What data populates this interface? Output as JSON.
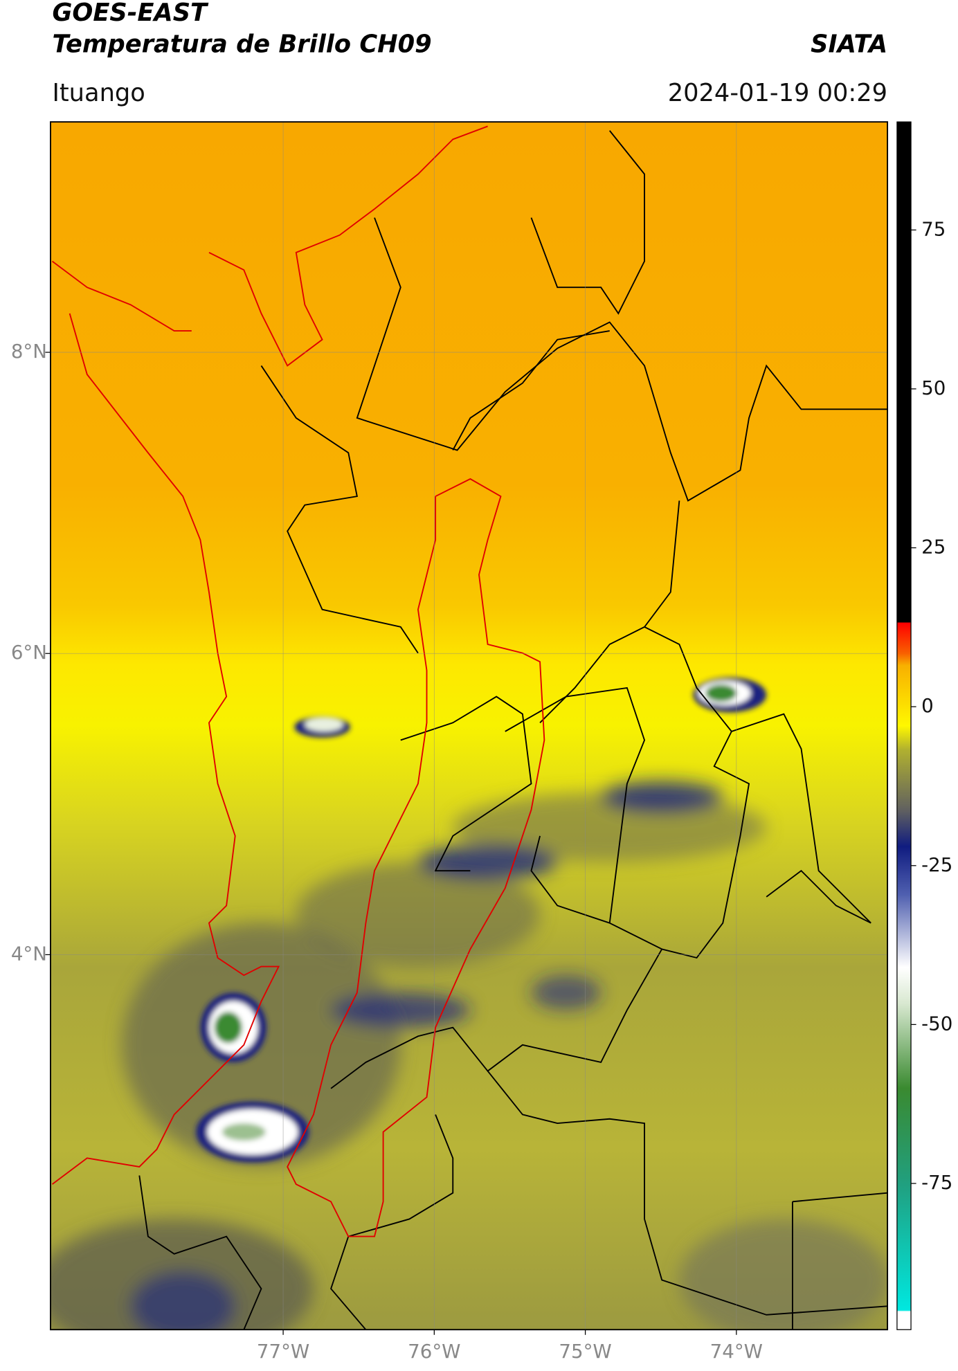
{
  "header": {
    "title": "GOES-EAST",
    "subtitle": "Temperatura de Brillo CH09",
    "source": "SIATA",
    "region": "Ituango",
    "datetime": "2024-01-19 00:29"
  },
  "map": {
    "xlim": [
      -78.54,
      -73.0
    ],
    "ylim": [
      1.51,
      9.53
    ],
    "xticks": [
      {
        "value": -77,
        "label": "77°W"
      },
      {
        "value": -76,
        "label": "76°W"
      },
      {
        "value": -75,
        "label": "75°W"
      },
      {
        "value": -74,
        "label": "74°W"
      }
    ],
    "yticks": [
      {
        "value": 8,
        "label": "8°N"
      },
      {
        "value": 6,
        "label": "6°N"
      },
      {
        "value": 4,
        "label": "4°N"
      }
    ],
    "grid": true
  },
  "colorbar": {
    "lim": [
      -98,
      92
    ],
    "ticks": [
      -75,
      -50,
      -25,
      0,
      25,
      50,
      75
    ]
  }
}
